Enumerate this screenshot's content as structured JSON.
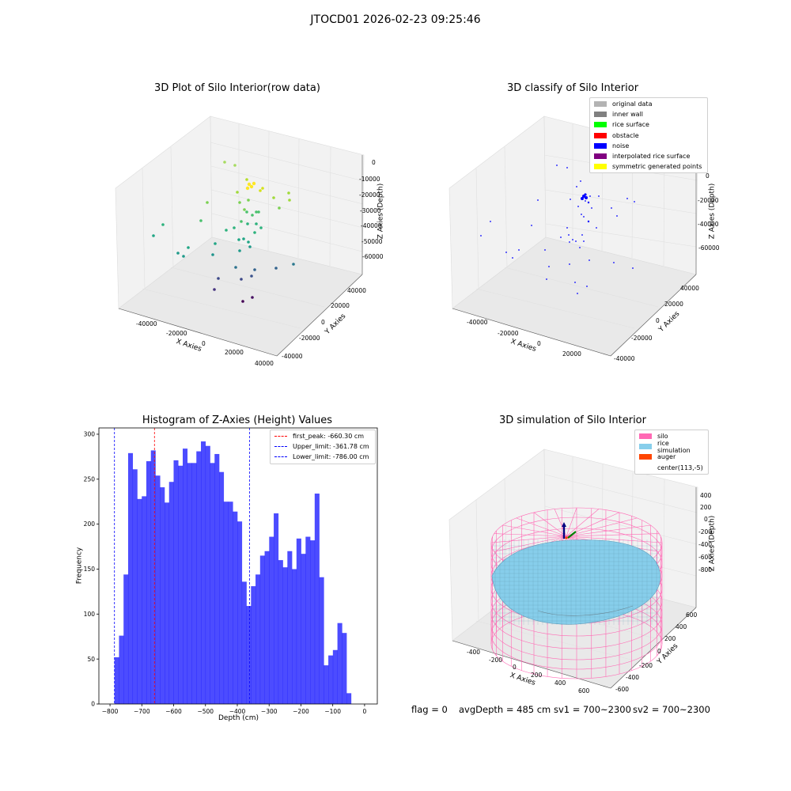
{
  "suptitle": "JTOCD01 2026-02-23 09:25:46",
  "panels": {
    "raw": {
      "title": "3D Plot of Silo Interior(row data)",
      "xlabel": "X Axies",
      "ylabel": "Y Axies",
      "zlabel": "Z Axies (Depth)",
      "xticks": [
        "-40000",
        "-20000",
        "0",
        "20000",
        "40000"
      ],
      "yticks": [
        "-40000",
        "-20000",
        "0",
        "20000",
        "40000"
      ],
      "zticks": [
        "0",
        "-10000",
        "-20000",
        "-30000",
        "-40000",
        "-50000",
        "-60000"
      ]
    },
    "classify": {
      "title": "3D classify of Silo Interior",
      "xlabel": "X Axies",
      "ylabel": "Y Axies",
      "zlabel": "Z Axies (Depth)",
      "xticks": [
        "-40000",
        "-20000",
        "0",
        "20000"
      ],
      "yticks": [
        "-40000",
        "-20000",
        "0",
        "20000",
        "40000"
      ],
      "zticks": [
        "0",
        "-20000",
        "-40000",
        "-60000"
      ],
      "legend": [
        {
          "label": "original data",
          "color": "#b3b3b3"
        },
        {
          "label": "inner wall",
          "color": "#808080"
        },
        {
          "label": "rice surface",
          "color": "#00ff00"
        },
        {
          "label": "obstacle",
          "color": "#ff0000"
        },
        {
          "label": "noise",
          "color": "#0000ff"
        },
        {
          "label": "interpolated rice surface",
          "color": "#800080"
        },
        {
          "label": "symmetric generated points",
          "color": "#ffff00"
        }
      ]
    },
    "histogram": {
      "title": "Histogram of Z-Axies (Height) Values",
      "xlabel": "Depth (cm)",
      "ylabel": "Frequency",
      "legend": [
        {
          "label": "first_peak: -660.30 cm",
          "color": "#ff0000"
        },
        {
          "label": "Upper_limit: -361.78 cm",
          "color": "#0000ff"
        },
        {
          "label": "Lower_limit: -786.00 cm",
          "color": "#0000ff"
        }
      ]
    },
    "simulation": {
      "title": "3D simulation of Silo Interior",
      "xlabel": "X Axies",
      "ylabel": "Y Axies",
      "zlabel": "Z Axies (Depth)",
      "xticks": [
        "-400",
        "-200",
        "0",
        "200",
        "400",
        "600"
      ],
      "yticks": [
        "-600",
        "-400",
        "-200",
        "0",
        "200",
        "400",
        "600"
      ],
      "zticks": [
        "400",
        "200",
        "0",
        "-200",
        "-400",
        "-600",
        "-800"
      ],
      "legend": [
        {
          "label": "silo",
          "color": "#ff69b4"
        },
        {
          "label": "rice simulation",
          "color": "#87ceeb"
        },
        {
          "label": "auger",
          "color": "#ff4500"
        },
        {
          "label": "center(113,-5)",
          "color": ""
        }
      ]
    }
  },
  "status": {
    "flag": "flag = 0",
    "avg": "avgDepth = 485 cm",
    "sv1": "sv1 = 700~2300",
    "sv2": "sv2 = 700~2300"
  },
  "chart_data": [
    {
      "type": "scatter",
      "title": "3D Plot of Silo Interior(row data)",
      "xlabel": "X Axies",
      "ylabel": "Y Axies",
      "zlabel": "Z Axies (Depth)",
      "xlim": [
        -50000,
        45000
      ],
      "ylim": [
        -45000,
        50000
      ],
      "zlim": [
        -70000,
        5000
      ],
      "grid": true
    },
    {
      "type": "scatter",
      "title": "3D classify of Silo Interior",
      "xlabel": "X Axies",
      "ylabel": "Y Axies",
      "zlabel": "Z Axies (Depth)",
      "series": [
        {
          "name": "original data",
          "color": "#b3b3b3"
        },
        {
          "name": "inner wall",
          "color": "#808080"
        },
        {
          "name": "rice surface",
          "color": "#00ff00"
        },
        {
          "name": "obstacle",
          "color": "#ff0000"
        },
        {
          "name": "noise",
          "color": "#0000ff"
        },
        {
          "name": "interpolated rice surface",
          "color": "#800080"
        },
        {
          "name": "symmetric generated points",
          "color": "#ffff00"
        }
      ],
      "legend_position": "top-right",
      "grid": true
    },
    {
      "type": "bar",
      "title": "Histogram of Z-Axies (Height) Values",
      "xlabel": "Depth (cm)",
      "ylabel": "Frequency",
      "bin_start": -786,
      "bin_width": 14.3,
      "values": [
        52,
        76,
        144,
        279,
        261,
        228,
        231,
        270,
        282,
        254,
        241,
        224,
        247,
        271,
        265,
        284,
        268,
        268,
        281,
        292,
        287,
        268,
        278,
        258,
        225,
        225,
        214,
        203,
        136,
        109,
        131,
        144,
        165,
        170,
        186,
        212,
        160,
        152,
        170,
        150,
        184,
        167,
        186,
        182,
        234,
        141,
        43,
        54,
        60,
        90,
        79,
        12
      ],
      "xlim": [
        -835,
        40
      ],
      "ylim": [
        0,
        307
      ],
      "xticks": [
        -800,
        -700,
        -600,
        -500,
        -400,
        -300,
        -200,
        -100,
        0
      ],
      "yticks": [
        0,
        50,
        100,
        150,
        200,
        250,
        300
      ],
      "vlines": [
        {
          "name": "first_peak",
          "x": -660.3,
          "color": "#ff0000"
        },
        {
          "name": "Upper_limit",
          "x": -361.78,
          "color": "#0000ff"
        },
        {
          "name": "Lower_limit",
          "x": -786.0,
          "color": "#0000ff"
        }
      ],
      "color": "#0000ff",
      "legend_position": "top-right"
    },
    {
      "type": "area",
      "title": "3D simulation of Silo Interior",
      "xlabel": "X Axies",
      "ylabel": "Y Axies",
      "zlabel": "Z Axies (Depth)",
      "series": [
        {
          "name": "silo",
          "color": "#ff69b4"
        },
        {
          "name": "rice simulation",
          "color": "#87ceeb"
        },
        {
          "name": "auger",
          "color": "#ff4500"
        }
      ],
      "center": [
        113,
        -5
      ],
      "legend_position": "top-right",
      "grid": true
    }
  ]
}
